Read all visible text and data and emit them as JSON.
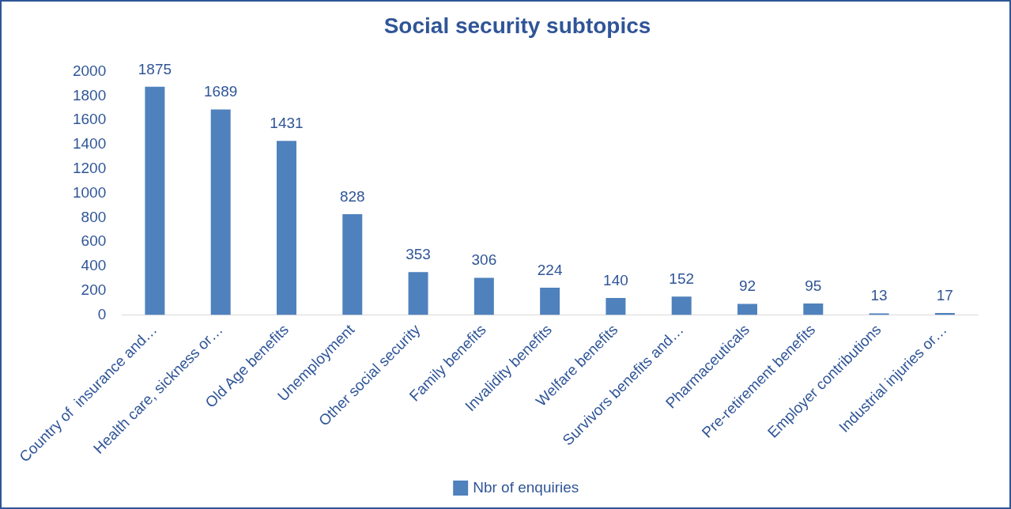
{
  "chart_data": {
    "type": "bar",
    "title": "Social security subtopics",
    "categories": [
      "Country of  insurance and…",
      "Health care, sickness or…",
      "Old Age benefits",
      "Unemployment",
      "Other social security",
      "Family benefits",
      "Invalidity benefits",
      "Welfare benefits",
      "Survivors benefits and…",
      "Pharmaceuticals",
      "Pre-retirement benefits",
      "Employer contributions",
      "Industrial injuries or…"
    ],
    "series": [
      {
        "name": "Nbr of enquiries",
        "color": "#4f81bd",
        "values": [
          1875,
          1689,
          1431,
          828,
          353,
          306,
          224,
          140,
          152,
          92,
          95,
          13,
          17
        ]
      }
    ],
    "ylim": [
      0,
      2000
    ],
    "yticks": [
      0,
      200,
      400,
      600,
      800,
      1000,
      1200,
      1400,
      1600,
      1800,
      2000
    ],
    "grid": false,
    "legend": "bottom",
    "data_labels": true
  }
}
